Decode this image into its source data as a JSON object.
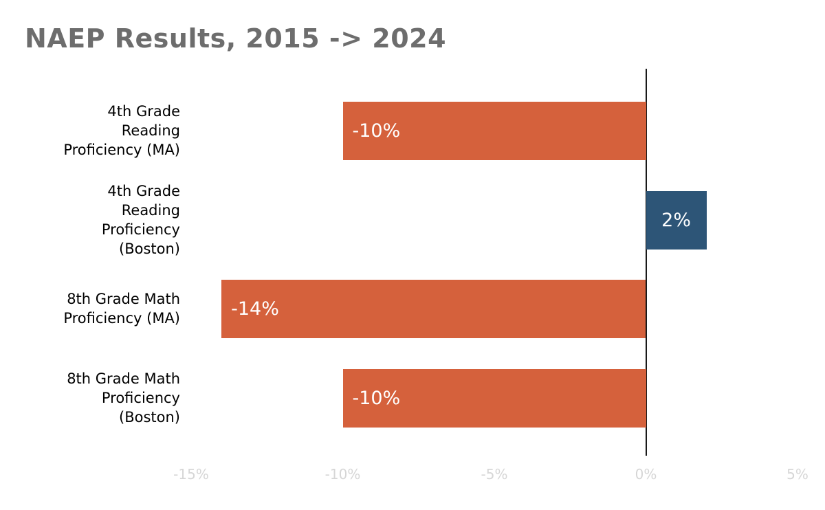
{
  "title": "NAEP Results, 2015 -> 2024",
  "chart_data": {
    "type": "bar",
    "orientation": "horizontal",
    "title": "NAEP Results, 2015 -> 2024",
    "categories": [
      "4th Grade Reading Proficiency (MA)",
      "4th Grade Reading Proficiency (Boston)",
      "8th Grade Math Proficiency (MA)",
      "8th Grade Math Proficiency (Boston)"
    ],
    "category_label_lines": [
      [
        "4th Grade",
        "Reading",
        "Proficiency (MA)"
      ],
      [
        "4th Grade",
        "Reading",
        "Proficiency",
        "(Boston)"
      ],
      [
        "8th Grade Math",
        "Proficiency (MA)"
      ],
      [
        "8th Grade Math",
        "Proficiency",
        "(Boston)"
      ]
    ],
    "values": [
      -10,
      2,
      -14,
      -10
    ],
    "value_labels": [
      "-10%",
      "2%",
      "-14%",
      "-10%"
    ],
    "xlim": [
      -15,
      5
    ],
    "xticks": [
      -15,
      -10,
      -5,
      0,
      5
    ],
    "xtick_labels": [
      "-15%",
      "-10%",
      "-5%",
      "0%",
      "5%"
    ],
    "colors": {
      "negative_bar": "#d5613c",
      "positive_bar": "#2d5577",
      "zero_line": "#1a1a1a",
      "title": "#6d6d6d",
      "tick_label": "#d6d6d6",
      "bar_value_text": "#ffffff"
    },
    "grid": false,
    "legend": null,
    "zero_line": true
  }
}
